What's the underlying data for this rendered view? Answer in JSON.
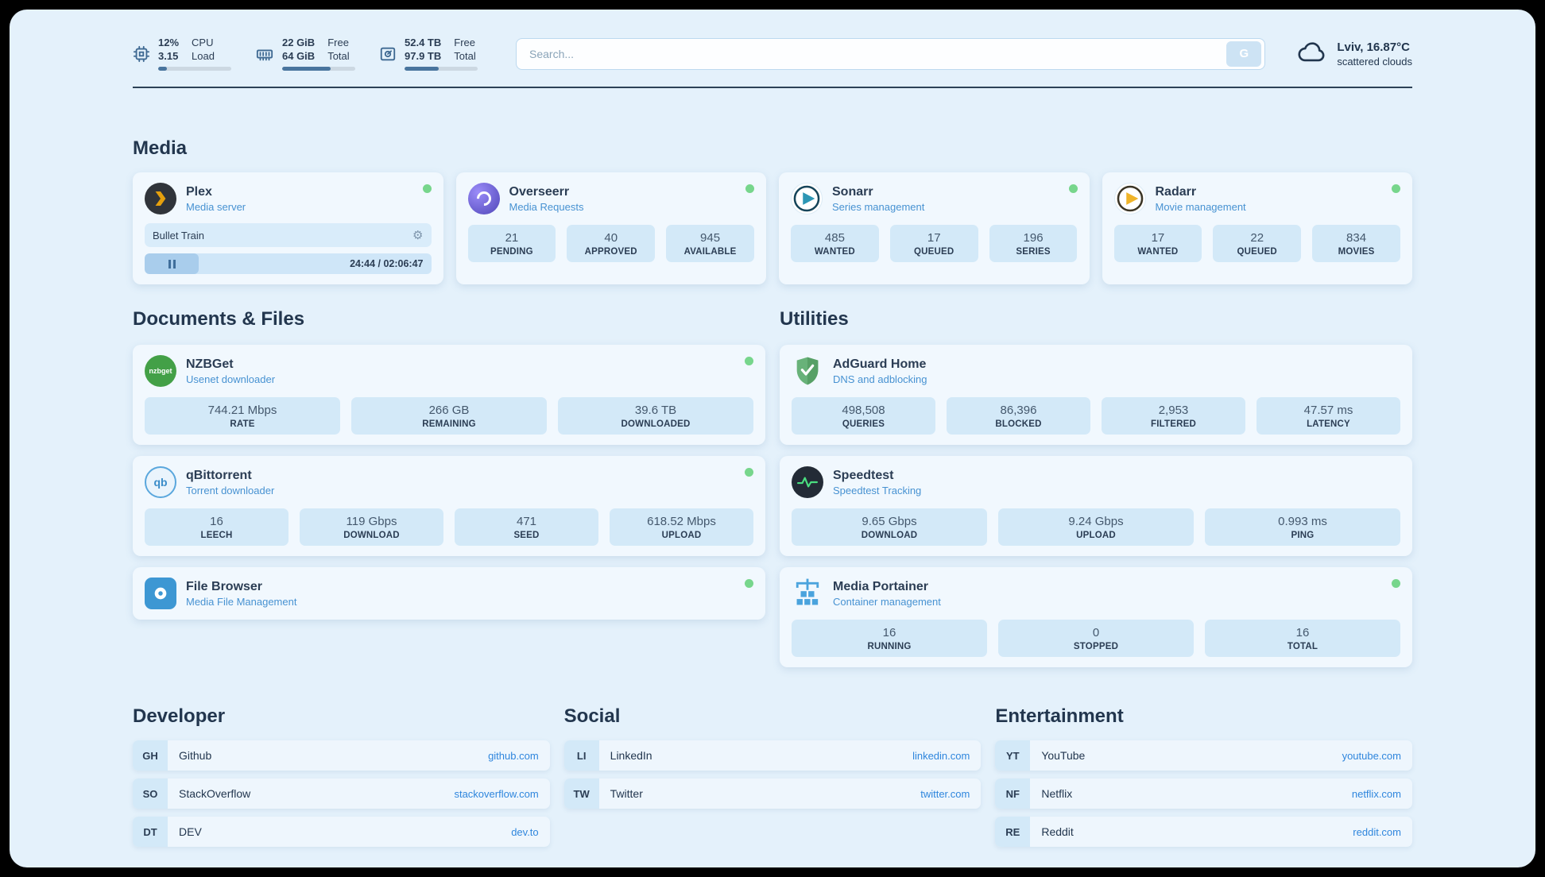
{
  "topbar": {
    "cpu": {
      "value": "12%",
      "sub": "3.15",
      "label_top": "CPU",
      "label_bottom": "Load",
      "percent": 12
    },
    "ram": {
      "value": "22 GiB",
      "sub": "64 GiB",
      "label_top": "Free",
      "label_bottom": "Total",
      "percent": 66
    },
    "disk": {
      "value": "52.4 TB",
      "sub": "97.9 TB",
      "label_top": "Free",
      "label_bottom": "Total",
      "percent": 47
    },
    "search": {
      "placeholder": "Search...",
      "button_label": "G"
    },
    "weather": {
      "location": "Lviv, 16.87°C",
      "condition": "scattered clouds"
    }
  },
  "media": {
    "heading": "Media",
    "plex": {
      "name": "Plex",
      "desc": "Media server",
      "now_playing": "Bullet Train",
      "time": "24:44 / 02:06:47",
      "progress_percent": 19
    },
    "overseerr": {
      "name": "Overseerr",
      "desc": "Media Requests",
      "stats": [
        {
          "value": "21",
          "label": "PENDING"
        },
        {
          "value": "40",
          "label": "APPROVED"
        },
        {
          "value": "945",
          "label": "AVAILABLE"
        }
      ]
    },
    "sonarr": {
      "name": "Sonarr",
      "desc": "Series management",
      "stats": [
        {
          "value": "485",
          "label": "WANTED"
        },
        {
          "value": "17",
          "label": "QUEUED"
        },
        {
          "value": "196",
          "label": "SERIES"
        }
      ]
    },
    "radarr": {
      "name": "Radarr",
      "desc": "Movie management",
      "stats": [
        {
          "value": "17",
          "label": "WANTED"
        },
        {
          "value": "22",
          "label": "QUEUED"
        },
        {
          "value": "834",
          "label": "MOVIES"
        }
      ]
    }
  },
  "documents": {
    "heading": "Documents & Files",
    "nzbget": {
      "name": "NZBGet",
      "desc": "Usenet downloader",
      "logo_text": "nzbget",
      "stats": [
        {
          "value": "744.21 Mbps",
          "label": "RATE"
        },
        {
          "value": "266 GB",
          "label": "REMAINING"
        },
        {
          "value": "39.6 TB",
          "label": "DOWNLOADED"
        }
      ]
    },
    "qbittorrent": {
      "name": "qBittorrent",
      "desc": "Torrent downloader",
      "logo_text": "qb",
      "stats": [
        {
          "value": "16",
          "label": "LEECH"
        },
        {
          "value": "119 Gbps",
          "label": "DOWNLOAD"
        },
        {
          "value": "471",
          "label": "SEED"
        },
        {
          "value": "618.52 Mbps",
          "label": "UPLOAD"
        }
      ]
    },
    "filebrowser": {
      "name": "File Browser",
      "desc": "Media File Management"
    }
  },
  "utilities": {
    "heading": "Utilities",
    "adguard": {
      "name": "AdGuard Home",
      "desc": "DNS and adblocking",
      "stats": [
        {
          "value": "498,508",
          "label": "QUERIES"
        },
        {
          "value": "86,396",
          "label": "BLOCKED"
        },
        {
          "value": "2,953",
          "label": "FILTERED"
        },
        {
          "value": "47.57 ms",
          "label": "LATENCY"
        }
      ]
    },
    "speedtest": {
      "name": "Speedtest",
      "desc": "Speedtest Tracking",
      "stats": [
        {
          "value": "9.65 Gbps",
          "label": "DOWNLOAD"
        },
        {
          "value": "9.24 Gbps",
          "label": "UPLOAD"
        },
        {
          "value": "0.993 ms",
          "label": "PING"
        }
      ]
    },
    "portainer": {
      "name": "Media Portainer",
      "desc": "Container management",
      "stats": [
        {
          "value": "16",
          "label": "RUNNING"
        },
        {
          "value": "0",
          "label": "STOPPED"
        },
        {
          "value": "16",
          "label": "TOTAL"
        }
      ]
    }
  },
  "bookmarks": {
    "developer": {
      "heading": "Developer",
      "items": [
        {
          "abbr": "GH",
          "name": "Github",
          "url": "github.com"
        },
        {
          "abbr": "SO",
          "name": "StackOverflow",
          "url": "stackoverflow.com"
        },
        {
          "abbr": "DT",
          "name": "DEV",
          "url": "dev.to"
        }
      ]
    },
    "social": {
      "heading": "Social",
      "items": [
        {
          "abbr": "LI",
          "name": "LinkedIn",
          "url": "linkedin.com"
        },
        {
          "abbr": "TW",
          "name": "Twitter",
          "url": "twitter.com"
        }
      ]
    },
    "entertainment": {
      "heading": "Entertainment",
      "items": [
        {
          "abbr": "YT",
          "name": "YouTube",
          "url": "youtube.com"
        },
        {
          "abbr": "NF",
          "name": "Netflix",
          "url": "netflix.com"
        },
        {
          "abbr": "RE",
          "name": "Reddit",
          "url": "reddit.com"
        }
      ]
    }
  },
  "colors": {
    "accent_blue": "#4792d2",
    "link_blue": "#2f86dd",
    "status_green": "#77d68c"
  }
}
